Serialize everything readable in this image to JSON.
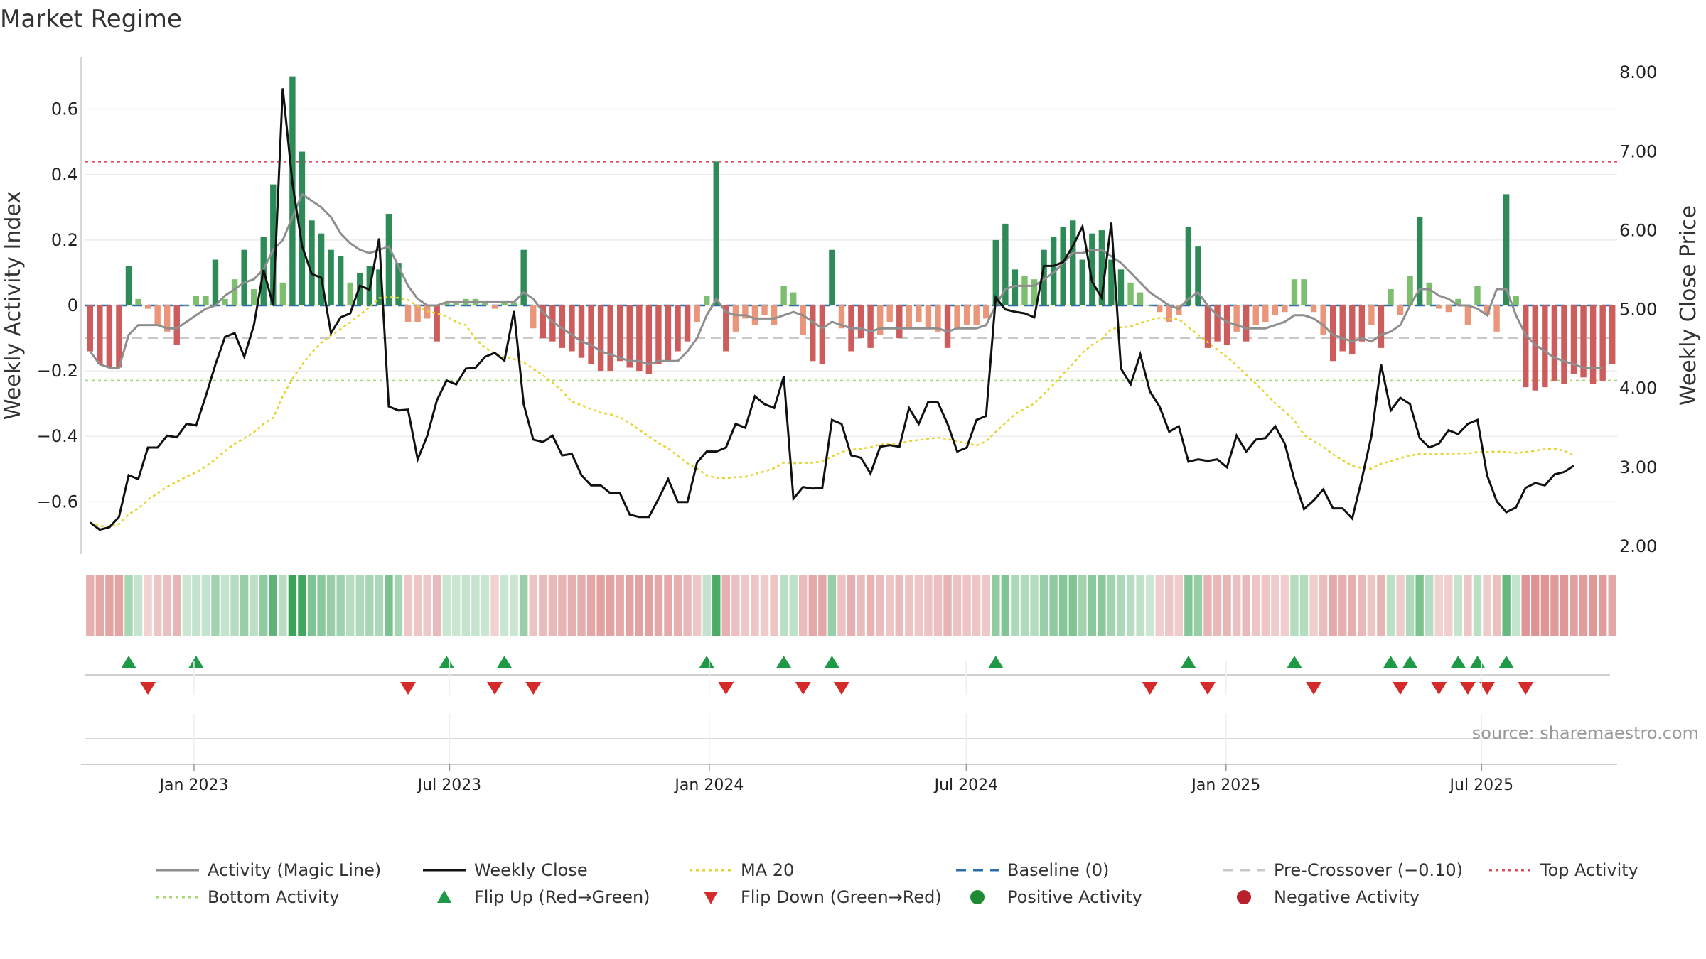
{
  "chart_data": {
    "type": "bar",
    "title": "Market Regime",
    "ylabel": "Weekly Activity Index",
    "y2label": "Weekly Close Price",
    "ylim": [
      -0.76,
      0.76
    ],
    "y2lim": [
      1.9,
      8.2
    ],
    "yticks": [
      0.6,
      0.4,
      0.2,
      0,
      -0.2,
      -0.4,
      -0.6
    ],
    "ytick_labels": [
      "0.6",
      "0.4",
      "0.2",
      "0",
      "−0.2",
      "−0.4",
      "−0.6"
    ],
    "y2ticks": [
      8,
      7,
      6,
      5,
      4,
      3,
      2
    ],
    "y2tick_labels": [
      "8.00",
      "7.00",
      "6.00",
      "5.00",
      "4.00",
      "3.00",
      "2.00"
    ],
    "x_range": [
      "2022-10-16",
      "2025-10-05"
    ],
    "xticks": [
      "2023-01-01",
      "2023-07-01",
      "2024-01-01",
      "2024-07-01",
      "2025-01-01",
      "2025-07-01"
    ],
    "xtick_labels": [
      "Jan 2023",
      "Jul 2023",
      "Jan 2024",
      "Jul 2024",
      "Jan 2025",
      "Jul 2025"
    ],
    "reference_lines": {
      "baseline": 0,
      "pre_crossover": -0.1,
      "top_activity": 0.44,
      "bottom_activity": -0.23
    },
    "activity": [
      -0.14,
      -0.18,
      -0.19,
      -0.19,
      0.12,
      0.02,
      -0.01,
      -0.06,
      -0.08,
      -0.12,
      0.0,
      0.03,
      0.03,
      0.14,
      0.02,
      0.08,
      0.17,
      0.05,
      0.21,
      0.37,
      0.07,
      0.7,
      0.47,
      0.26,
      0.22,
      0.17,
      0.15,
      0.07,
      0.1,
      0.12,
      0.11,
      0.28,
      0.13,
      -0.05,
      -0.05,
      -0.04,
      -0.11,
      0.01,
      0.01,
      0.02,
      0.02,
      0.01,
      -0.01,
      0.01,
      0.01,
      0.17,
      -0.07,
      -0.1,
      -0.11,
      -0.13,
      -0.14,
      -0.16,
      -0.18,
      -0.2,
      -0.2,
      -0.17,
      -0.19,
      -0.2,
      -0.21,
      -0.18,
      -0.17,
      -0.14,
      -0.11,
      -0.05,
      0.03,
      0.44,
      -0.14,
      -0.08,
      -0.04,
      -0.06,
      -0.03,
      -0.06,
      0.06,
      0.04,
      -0.09,
      -0.17,
      -0.18,
      0.17,
      -0.07,
      -0.14,
      -0.1,
      -0.13,
      -0.09,
      -0.05,
      -0.1,
      -0.07,
      -0.05,
      -0.07,
      -0.08,
      -0.13,
      -0.07,
      -0.06,
      -0.06,
      -0.04,
      0.2,
      0.25,
      0.11,
      0.09,
      0.08,
      0.17,
      0.21,
      0.24,
      0.26,
      0.14,
      0.22,
      0.23,
      0.14,
      0.11,
      0.07,
      0.04,
      0.0,
      -0.02,
      -0.05,
      -0.03,
      0.24,
      0.18,
      -0.13,
      -0.11,
      -0.12,
      -0.08,
      -0.11,
      -0.06,
      -0.05,
      -0.03,
      -0.02,
      0.08,
      0.08,
      -0.02,
      -0.09,
      -0.17,
      -0.14,
      -0.15,
      -0.11,
      -0.06,
      -0.13,
      0.05,
      -0.03,
      0.09,
      0.27,
      0.07,
      -0.01,
      -0.02,
      0.02,
      -0.06,
      0.06,
      -0.03,
      -0.08,
      0.34,
      0.03,
      -0.25,
      -0.26,
      -0.25,
      -0.23,
      -0.24,
      -0.21,
      -0.22,
      -0.24,
      -0.23,
      -0.18
    ],
    "magic_line": [
      -0.14,
      -0.18,
      -0.19,
      -0.19,
      -0.09,
      -0.06,
      -0.06,
      -0.06,
      -0.07,
      -0.07,
      -0.05,
      -0.03,
      -0.01,
      0.0,
      0.03,
      0.05,
      0.07,
      0.08,
      0.11,
      0.17,
      0.2,
      0.27,
      0.34,
      0.32,
      0.3,
      0.27,
      0.22,
      0.19,
      0.17,
      0.16,
      0.17,
      0.18,
      0.12,
      0.06,
      0.02,
      0.0,
      0.0,
      0.01,
      0.01,
      0.01,
      0.01,
      0.01,
      0.01,
      0.01,
      0.01,
      0.04,
      0.02,
      -0.02,
      -0.05,
      -0.07,
      -0.09,
      -0.11,
      -0.12,
      -0.14,
      -0.15,
      -0.16,
      -0.17,
      -0.17,
      -0.18,
      -0.17,
      -0.17,
      -0.17,
      -0.14,
      -0.1,
      -0.03,
      0.02,
      -0.02,
      -0.03,
      -0.03,
      -0.04,
      -0.04,
      -0.04,
      -0.03,
      -0.02,
      -0.03,
      -0.05,
      -0.07,
      -0.05,
      -0.06,
      -0.07,
      -0.07,
      -0.08,
      -0.07,
      -0.07,
      -0.07,
      -0.07,
      -0.07,
      -0.07,
      -0.07,
      -0.08,
      -0.07,
      -0.07,
      -0.07,
      -0.06,
      0.0,
      0.05,
      0.06,
      0.06,
      0.06,
      0.08,
      0.1,
      0.13,
      0.16,
      0.16,
      0.17,
      0.17,
      0.15,
      0.13,
      0.1,
      0.07,
      0.04,
      0.02,
      0.0,
      -0.01,
      0.02,
      0.04,
      0.0,
      -0.03,
      -0.05,
      -0.06,
      -0.07,
      -0.07,
      -0.07,
      -0.06,
      -0.05,
      -0.03,
      -0.03,
      -0.04,
      -0.06,
      -0.09,
      -0.1,
      -0.11,
      -0.1,
      -0.11,
      -0.09,
      -0.08,
      -0.06,
      0.0,
      0.05,
      0.05,
      0.03,
      0.02,
      0.0,
      0.0,
      -0.01,
      -0.03,
      0.05,
      0.05,
      -0.03,
      -0.09,
      -0.12,
      -0.14,
      -0.16,
      -0.17,
      -0.18,
      -0.19,
      -0.19,
      -0.19
    ],
    "weekly_close": [
      2.3,
      2.21,
      2.24,
      2.37,
      2.9,
      2.85,
      3.25,
      3.25,
      3.4,
      3.38,
      3.55,
      3.53,
      3.9,
      4.3,
      4.65,
      4.7,
      4.4,
      4.8,
      5.5,
      5.05,
      7.8,
      6.6,
      5.8,
      5.45,
      5.4,
      4.7,
      4.9,
      4.95,
      5.3,
      5.25,
      5.9,
      3.77,
      3.72,
      3.73,
      3.1,
      3.4,
      3.85,
      4.1,
      4.05,
      4.25,
      4.26,
      4.4,
      4.45,
      4.35,
      4.98,
      3.8,
      3.35,
      3.32,
      3.4,
      3.15,
      3.17,
      2.9,
      2.77,
      2.77,
      2.67,
      2.67,
      2.4,
      2.37,
      2.37,
      2.6,
      2.85,
      2.56,
      2.56,
      3.06,
      3.2,
      3.2,
      3.25,
      3.55,
      3.5,
      3.9,
      3.8,
      3.75,
      4.15,
      2.6,
      2.75,
      2.73,
      2.74,
      3.6,
      3.55,
      3.15,
      3.12,
      2.92,
      3.26,
      3.28,
      3.26,
      3.75,
      3.55,
      3.83,
      3.82,
      3.55,
      3.2,
      3.25,
      3.6,
      3.65,
      5.15,
      5.0,
      4.97,
      4.95,
      4.9,
      5.55,
      5.55,
      5.6,
      5.8,
      6.05,
      5.35,
      5.15,
      6.1,
      4.25,
      4.05,
      4.43,
      3.96,
      3.77,
      3.45,
      3.52,
      3.07,
      3.1,
      3.08,
      3.1,
      3.0,
      3.4,
      3.2,
      3.35,
      3.37,
      3.52,
      3.3,
      2.84,
      2.47,
      2.58,
      2.72,
      2.48,
      2.48,
      2.35,
      2.85,
      3.4,
      4.3,
      3.72,
      3.88,
      3.8,
      3.37,
      3.25,
      3.3,
      3.47,
      3.42,
      3.55,
      3.6,
      2.9,
      2.57,
      2.43,
      2.49,
      2.74,
      2.8,
      2.77,
      2.91,
      2.94,
      3.02
    ]
  },
  "legend": [
    {
      "label": "Activity (Magic Line)",
      "color": "#8e8e8e",
      "icon": "solid-line"
    },
    {
      "label": "Weekly Close",
      "color": "#111111",
      "icon": "solid-line"
    },
    {
      "label": "MA 20",
      "color": "#e6d42e",
      "icon": "dotted-line"
    },
    {
      "label": "Baseline (0)",
      "color": "#2f6fa8",
      "icon": "dashed-line"
    },
    {
      "label": "Pre-Crossover (−0.10)",
      "color": "#c8c8c8",
      "icon": "dashed-line"
    },
    {
      "label": "Top Activity",
      "color": "#e04a5a",
      "icon": "dotted-line"
    },
    {
      "label": "Bottom Activity",
      "color": "#a8d670",
      "icon": "dotted-line"
    },
    {
      "label": "Flip Up (Red→Green)",
      "color": "#1e9a47",
      "icon": "triangle-up-icon"
    },
    {
      "label": "Flip Down (Green→Red)",
      "color": "#d42a2a",
      "icon": "triangle-down-icon"
    },
    {
      "label": "Positive Activity",
      "color": "#1e8a33",
      "icon": "circle-icon"
    },
    {
      "label": "Negative Activity",
      "color": "#b8212b",
      "icon": "circle-icon"
    }
  ],
  "source": "source: sharemaestro.com",
  "colors": {
    "pos_strong": "#2e8b57",
    "pos_light": "#7dbf6e",
    "neg_strong": "#cd5c5c",
    "neg_light": "#e9967a",
    "flip_up": "#1e9a47",
    "flip_down": "#d42a2a"
  }
}
